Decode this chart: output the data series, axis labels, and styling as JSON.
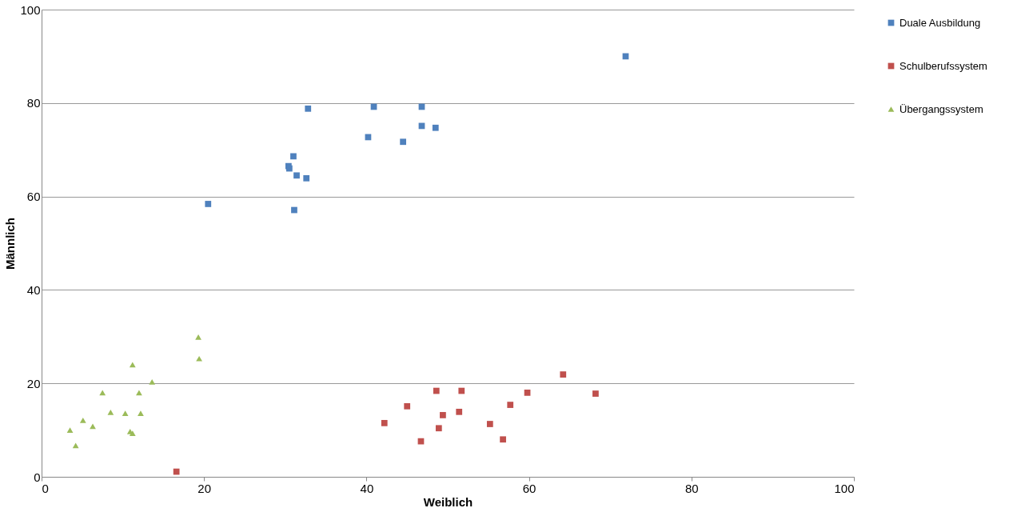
{
  "chart_data": {
    "type": "scatter",
    "xlabel": "Weiblich",
    "ylabel": "Männlich",
    "xlim": [
      0,
      100
    ],
    "ylim": [
      0,
      100
    ],
    "xticks": [
      0,
      20,
      40,
      60,
      80,
      100
    ],
    "yticks": [
      0,
      20,
      40,
      60,
      80,
      100
    ],
    "grid": "y",
    "legend": "right",
    "series": [
      {
        "name": "Duale Ausbildung",
        "color": "#4f81bd",
        "marker": "square",
        "x": [
          71.9,
          32.8,
          40.9,
          46.8,
          46.8,
          48.5,
          40.2,
          44.5,
          31.0,
          30.4,
          30.5,
          31.4,
          32.6,
          20.5,
          31.1
        ],
        "values": [
          90.0,
          78.8,
          79.2,
          79.2,
          75.1,
          74.7,
          72.7,
          71.7,
          68.6,
          66.5,
          66.0,
          64.5,
          63.9,
          58.4,
          57.1
        ]
      },
      {
        "name": "Schulberufssystem",
        "color": "#c0504d",
        "marker": "square",
        "x": [
          16.6,
          42.2,
          45.0,
          48.6,
          51.7,
          49.4,
          51.4,
          48.9,
          46.7,
          55.2,
          56.8,
          57.7,
          59.8,
          64.2,
          68.2
        ],
        "values": [
          1.1,
          11.5,
          15.1,
          18.4,
          18.4,
          13.2,
          13.9,
          10.4,
          7.6,
          11.3,
          8.0,
          15.4,
          18.0,
          21.9,
          17.8
        ]
      },
      {
        "name": "Übergangssystem",
        "color": "#9bbb59",
        "marker": "triangle",
        "x": [
          19.3,
          19.4,
          11.2,
          13.6,
          7.5,
          12.0,
          8.5,
          10.3,
          12.2,
          5.1,
          6.3,
          3.5,
          10.9,
          11.2,
          4.2
        ],
        "values": [
          29.9,
          25.3,
          24.0,
          20.3,
          18.0,
          18.0,
          13.8,
          13.6,
          13.6,
          12.1,
          10.8,
          10.0,
          9.7,
          9.3,
          6.7
        ]
      }
    ]
  }
}
